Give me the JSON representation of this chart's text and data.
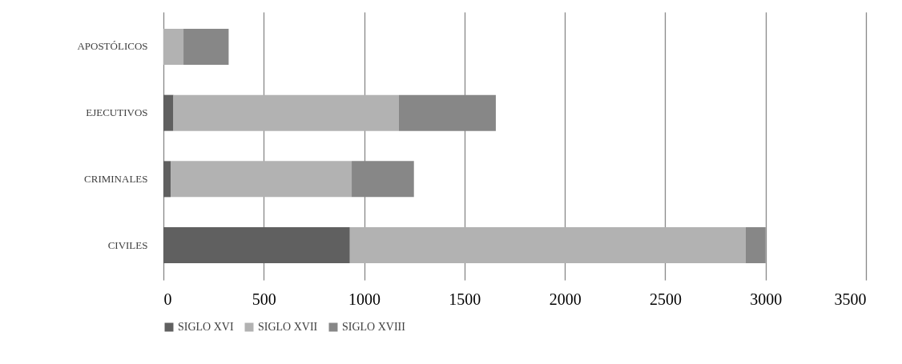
{
  "chart_data": {
    "type": "bar",
    "orientation": "horizontal",
    "stacked": true,
    "categories": [
      "APOSTÓLICOS",
      "EJECUTIVOS",
      "CRIMINALES",
      "CIVILES"
    ],
    "series": [
      {
        "name": "SIGLO XVI",
        "color": "#606060",
        "values": [
          0,
          50,
          36,
          929
        ]
      },
      {
        "name": "SIGLO XVII",
        "color": "#b2b2b2",
        "values": [
          100,
          1123,
          902,
          1972
        ]
      },
      {
        "name": "SIGLO XVIII",
        "color": "#878787",
        "values": [
          225,
          483,
          310,
          99
        ]
      }
    ],
    "xlim": [
      0,
      3500
    ],
    "xticks": [
      0,
      500,
      1000,
      1500,
      2000,
      2500,
      3000,
      3500
    ],
    "grid": "x",
    "legend": "bottom"
  }
}
